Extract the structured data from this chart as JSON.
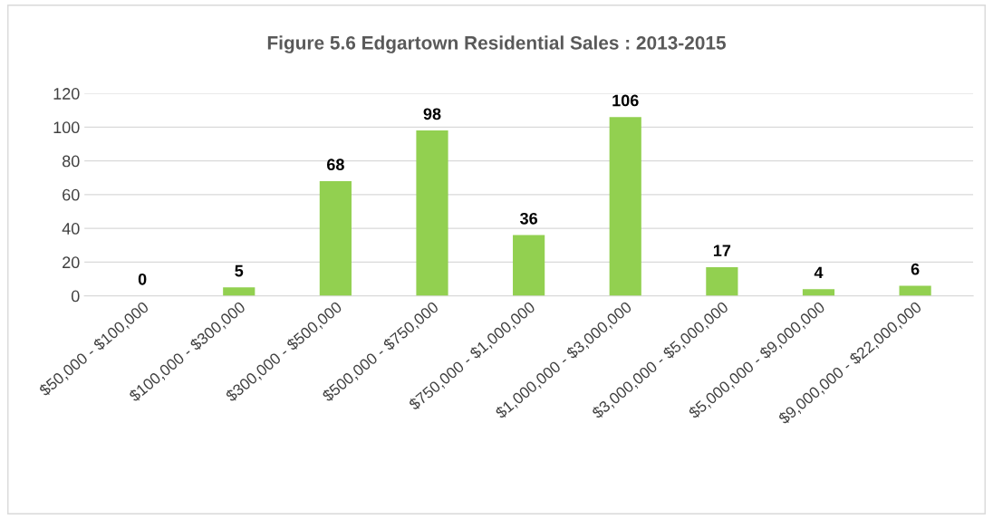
{
  "chart_data": {
    "type": "bar",
    "title": "Figure 5.6 Edgartown Residential Sales : 2013-2015",
    "categories": [
      "$50,000 - $100,000",
      "$100,000 - $300,000",
      "$300,000 - $500,000",
      "$500,000 - $750,000",
      "$750,000 - $1,000,000",
      "$1,000,000 - $3,000,000",
      "$3,000,000 - $5,000,000",
      "$5,000,000 - $9,000,000",
      "$9,000,000 - $22,000,000"
    ],
    "values": [
      0,
      5,
      68,
      98,
      36,
      106,
      17,
      4,
      6
    ],
    "color": "#92d050",
    "ylim": [
      0,
      120
    ],
    "yticks": [
      0,
      20,
      40,
      60,
      80,
      100,
      120
    ],
    "grid": "y",
    "data_labels": true
  }
}
